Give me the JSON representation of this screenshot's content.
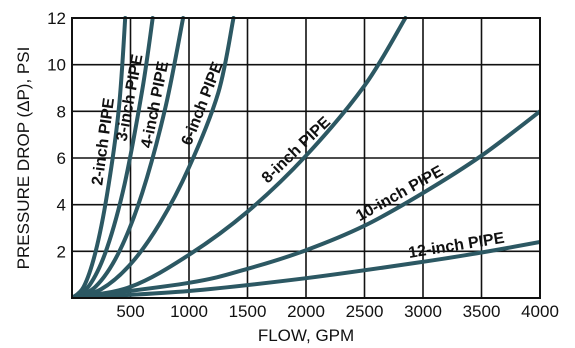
{
  "chart_data": {
    "type": "line",
    "xlabel": "FLOW, GPM",
    "ylabel": "PRESSURE DROP (ΔP), PSI",
    "xlim": [
      0,
      4000
    ],
    "ylim": [
      0,
      12
    ],
    "x_ticks": [
      "500",
      "1000",
      "1500",
      "2000",
      "2500",
      "3000",
      "3500",
      "4000"
    ],
    "y_ticks": [
      "2",
      "4",
      "6",
      "8",
      "10",
      "12"
    ],
    "grid": true,
    "line_color": "#2c5863",
    "series": [
      {
        "name": "2-inch PIPE",
        "x": [
          0,
          100,
          200,
          300,
          400,
          455
        ],
        "y": [
          0,
          0.48,
          1.95,
          4.45,
          8.1,
          12
        ]
      },
      {
        "name": "3-inch PIPE",
        "x": [
          0,
          150,
          300,
          450,
          600,
          690
        ],
        "y": [
          0,
          0.55,
          2.15,
          4.9,
          8.9,
          12
        ]
      },
      {
        "name": "4-inch PIPE",
        "x": [
          0,
          200,
          400,
          600,
          800,
          950
        ],
        "y": [
          0,
          0.48,
          1.95,
          4.5,
          8.2,
          12
        ]
      },
      {
        "name": "6-inch PIPE",
        "x": [
          0,
          250,
          500,
          750,
          1000,
          1250,
          1380
        ],
        "y": [
          0,
          0.38,
          1.45,
          3.2,
          5.6,
          8.8,
          12
        ]
      },
      {
        "name": "8-inch PIPE",
        "x": [
          0,
          500,
          1000,
          1500,
          2000,
          2500,
          2850
        ],
        "y": [
          0,
          0.48,
          1.85,
          3.7,
          6.1,
          9.1,
          12
        ]
      },
      {
        "name": "10-inch PIPE",
        "x": [
          0,
          1000,
          1500,
          2000,
          2500,
          3000,
          3500,
          4000
        ],
        "y": [
          0,
          0.65,
          1.25,
          2.05,
          3.1,
          4.5,
          6.1,
          8
        ]
      },
      {
        "name": "12-inch PIPE",
        "x": [
          0,
          1000,
          2000,
          3000,
          3500,
          4000
        ],
        "y": [
          0,
          0.3,
          0.85,
          1.55,
          1.95,
          2.4
        ]
      }
    ]
  }
}
